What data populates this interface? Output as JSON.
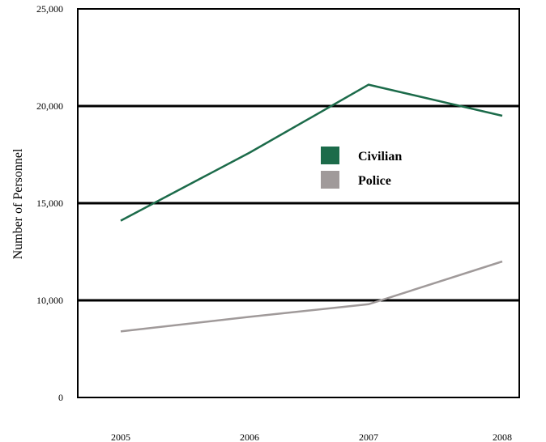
{
  "chart_data": {
    "type": "line",
    "title": "",
    "xlabel": "",
    "ylabel": "Number of Personnel",
    "x": [
      "2005",
      "2006",
      "2007",
      "2008"
    ],
    "y_ticks": [
      {
        "value": 0,
        "label": "0"
      },
      {
        "value": 10000,
        "label": "10,000"
      },
      {
        "value": 15000,
        "label": "15,000"
      },
      {
        "value": 20000,
        "label": "20,000"
      },
      {
        "value": 25000,
        "label": "25,000"
      }
    ],
    "y_scale": "piecewise-linear (0 to 10,000 occupies one 5,000-step height)",
    "gridlines_at": [
      10000,
      15000,
      20000
    ],
    "legend_position": "center",
    "series": [
      {
        "name": "Civilian",
        "color": "#1c6b4a",
        "values": [
          14100,
          17600,
          21100,
          19500
        ]
      },
      {
        "name": "Police",
        "color": "#a09a9a",
        "values": [
          6800,
          8300,
          9600,
          12000
        ]
      }
    ]
  }
}
